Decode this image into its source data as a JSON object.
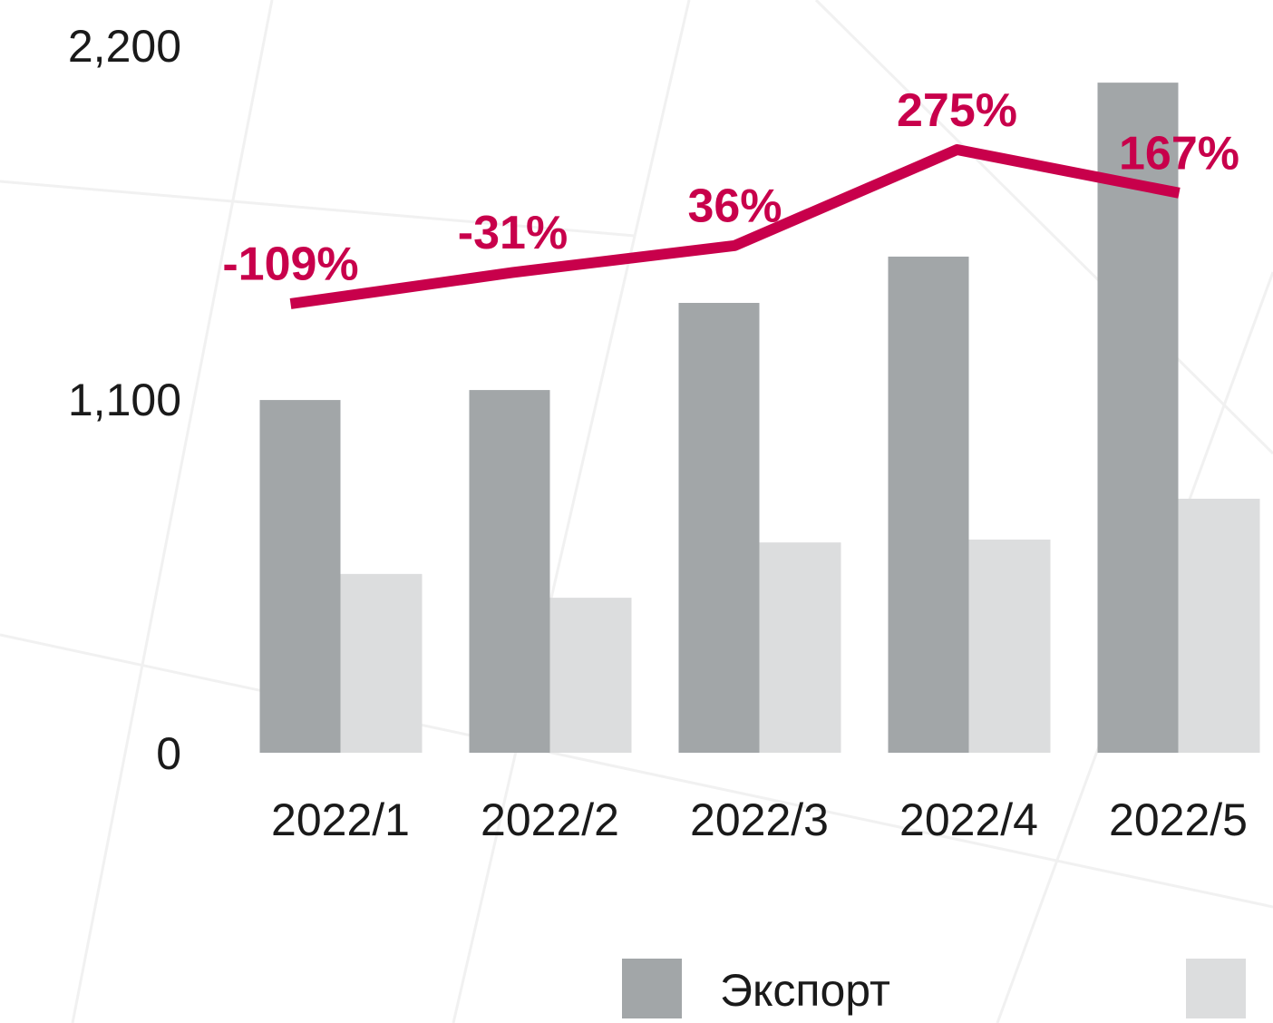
{
  "chart_data": {
    "type": "bar",
    "categories": [
      "2022/1",
      "2022/2",
      "2022/3",
      "2022/4",
      "2022/5"
    ],
    "series": [
      {
        "name": "Экспорт",
        "color": "#a2a6a8",
        "values": [
          1097,
          1128,
          1399,
          1543,
          2084
        ]
      },
      {
        "color": "#dcddde",
        "values": [
          556,
          482,
          654,
          663,
          790
        ]
      },
      {
        "type": "line",
        "axis": "y2",
        "color": "#c8004b",
        "values": [
          -109,
          -31,
          36,
          275,
          167
        ],
        "value_labels": [
          "-109%",
          "-31%",
          "36%",
          "275%",
          "167%"
        ]
      }
    ],
    "ylim": [
      0,
      2200
    ],
    "yticks": [
      {
        "value": 0,
        "label": "0"
      },
      {
        "value": 1100,
        "label": "1,100"
      },
      {
        "value": 2200,
        "label": "2,200"
      }
    ],
    "y2lim": [
      -1228,
      535
    ],
    "grid": false,
    "legend": "bottom"
  }
}
